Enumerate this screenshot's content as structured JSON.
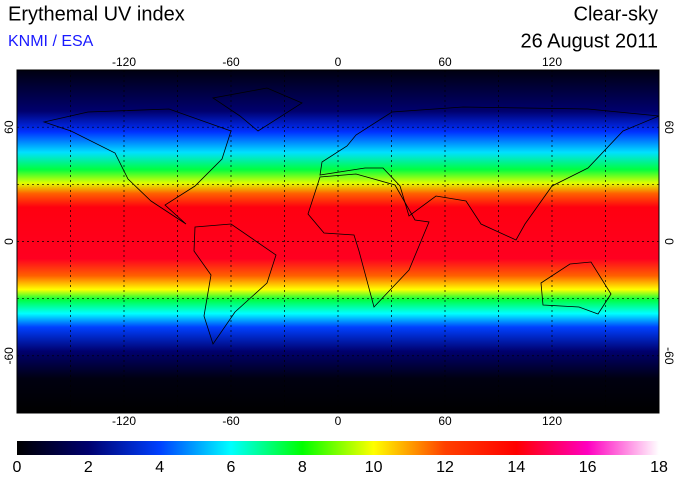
{
  "header": {
    "title": "Erythemal UV index",
    "source": "KNMI / ESA",
    "condition": "Clear-sky",
    "date": "26 August 2011"
  },
  "map": {
    "lon_range": [
      -180,
      180
    ],
    "lat_range": [
      -90,
      90
    ],
    "lon_ticks": [
      -120,
      -60,
      0,
      60,
      120
    ],
    "lat_ticks": [
      -60,
      0,
      60
    ],
    "lon_gridlines": [
      -150,
      -120,
      -90,
      -60,
      -30,
      0,
      30,
      60,
      90,
      120,
      150
    ],
    "lat_gridlines": [
      -60,
      -30,
      0,
      30,
      60
    ]
  },
  "colorbar": {
    "range": [
      0,
      18
    ],
    "ticks": [
      0,
      2,
      4,
      6,
      8,
      10,
      12,
      14,
      16,
      18
    ],
    "colors": [
      "#000000",
      "#00006e",
      "#0040ff",
      "#00ffff",
      "#00ff00",
      "#ffff00",
      "#ff4000",
      "#ff0000",
      "#ff00c0",
      "#ffffff"
    ]
  }
}
